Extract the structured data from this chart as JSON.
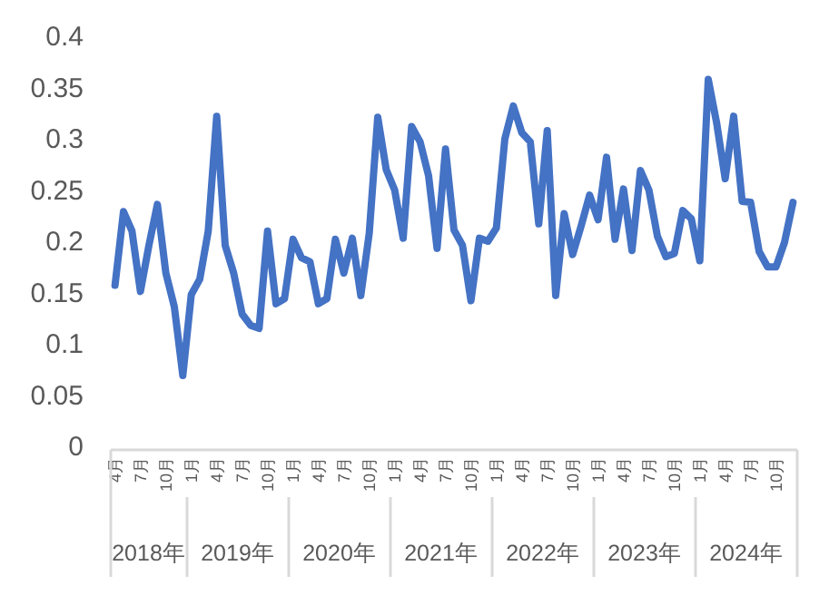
{
  "chart_data": {
    "type": "line",
    "categories": [
      "4月",
      null,
      null,
      "7月",
      null,
      null,
      "10月",
      null,
      null,
      "1月",
      null,
      null,
      "4月",
      null,
      null,
      "7月",
      null,
      null,
      "10月",
      null,
      null,
      "1月",
      null,
      null,
      "4月",
      null,
      null,
      "7月",
      null,
      null,
      "10月",
      null,
      null,
      "1月",
      null,
      null,
      "4月",
      null,
      null,
      "7月",
      null,
      null,
      "10月",
      null,
      null,
      "1月",
      null,
      null,
      "4月",
      null,
      null,
      "7月",
      null,
      null,
      "10月",
      null,
      null,
      "1月",
      null,
      null,
      "4月",
      null,
      null,
      "7月",
      null,
      null,
      "10月",
      null,
      null,
      "1月",
      null,
      null,
      "4月",
      null,
      null,
      "7月",
      null,
      null,
      "10月",
      null,
      null
    ],
    "series": [
      {
        "color": "#4472c4",
        "values": [
          0.157,
          0.229,
          0.21,
          0.151,
          0.196,
          0.236,
          0.169,
          0.136,
          0.069,
          0.148,
          0.163,
          0.21,
          0.322,
          0.196,
          0.169,
          0.129,
          0.118,
          0.115,
          0.21,
          0.139,
          0.144,
          0.202,
          0.184,
          0.18,
          0.139,
          0.144,
          0.202,
          0.169,
          0.203,
          0.147,
          0.208,
          0.321,
          0.27,
          0.25,
          0.203,
          0.312,
          0.297,
          0.264,
          0.193,
          0.29,
          0.211,
          0.196,
          0.142,
          0.203,
          0.2,
          0.213,
          0.3,
          0.332,
          0.306,
          0.297,
          0.217,
          0.308,
          0.147,
          0.227,
          0.187,
          0.215,
          0.245,
          0.221,
          0.282,
          0.202,
          0.251,
          0.191,
          0.269,
          0.25,
          0.205,
          0.185,
          0.188,
          0.23,
          0.222,
          0.181,
          0.358,
          0.315,
          0.261,
          0.322,
          0.239,
          0.238,
          0.19,
          0.175,
          0.175,
          0.199,
          0.238
        ]
      }
    ],
    "ylim": [
      0,
      0.4
    ],
    "yticks": [
      0,
      0.05,
      0.1,
      0.15,
      0.2,
      0.25,
      0.3,
      0.35,
      0.4
    ],
    "annotations": [
      "2018年",
      "2019年",
      "2020年",
      "2021年",
      "2022年",
      "2023年",
      "2024年"
    ]
  }
}
